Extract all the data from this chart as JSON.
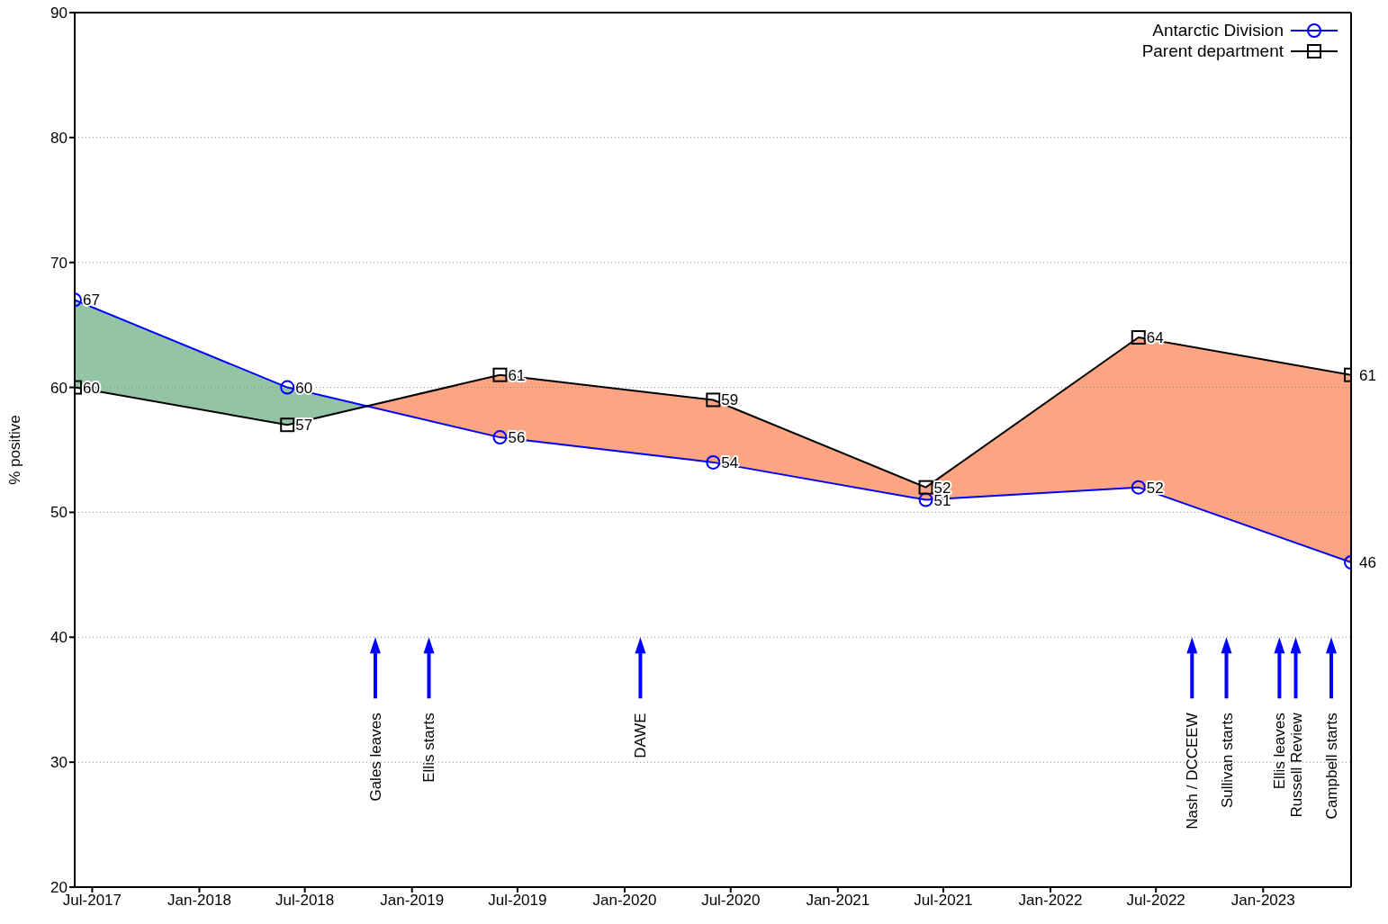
{
  "chart_data": {
    "type": "line",
    "ylabel": "% positive",
    "x": [
      "2017-06-01",
      "2018-06-01",
      "2019-06-01",
      "2020-06-01",
      "2021-06-01",
      "2022-06-01",
      "2023-06-01"
    ],
    "series": [
      {
        "name": "Antarctic Division",
        "color": "#0000ff",
        "marker": "circle",
        "values": [
          67,
          60,
          56,
          54,
          51,
          52,
          46
        ]
      },
      {
        "name": "Parent department",
        "color": "#000000",
        "marker": "square",
        "values": [
          60,
          57,
          61,
          59,
          52,
          64,
          61
        ]
      }
    ],
    "xlim": [
      "2017-06-01",
      "2023-06-01"
    ],
    "xticks": [
      {
        "value": "2017-07-01",
        "label": "Jul-2017"
      },
      {
        "value": "2018-01-01",
        "label": "Jan-2018"
      },
      {
        "value": "2018-07-01",
        "label": "Jul-2018"
      },
      {
        "value": "2019-01-01",
        "label": "Jan-2019"
      },
      {
        "value": "2019-07-01",
        "label": "Jul-2019"
      },
      {
        "value": "2020-01-01",
        "label": "Jan-2020"
      },
      {
        "value": "2020-07-01",
        "label": "Jul-2020"
      },
      {
        "value": "2021-01-01",
        "label": "Jan-2021"
      },
      {
        "value": "2021-07-01",
        "label": "Jul-2021"
      },
      {
        "value": "2022-01-01",
        "label": "Jan-2022"
      },
      {
        "value": "2022-07-01",
        "label": "Jul-2022"
      },
      {
        "value": "2023-01-01",
        "label": "Jan-2023"
      }
    ],
    "ylim": [
      20,
      90
    ],
    "yticks": [
      20,
      30,
      40,
      50,
      60,
      70,
      80,
      90
    ],
    "grid": "y",
    "legend": "top right",
    "data_labels": true,
    "line_style": "solid",
    "ref_lines": [
      {
        "axis": "x",
        "value": "2018-10-30",
        "label": "Gales leaves",
        "color": "#0000ff"
      },
      {
        "axis": "x",
        "value": "2019-01-30",
        "label": "Ellis starts",
        "color": "#0000ff"
      },
      {
        "axis": "x",
        "value": "2020-01-28",
        "label": "DAWE",
        "color": "#0000ff"
      },
      {
        "axis": "x",
        "value": "2022-09-01",
        "label": "Nash / DCCEEW",
        "color": "#0000ff"
      },
      {
        "axis": "x",
        "value": "2022-10-30",
        "label": "Sullivan starts",
        "color": "#0000ff"
      },
      {
        "axis": "x",
        "value": "2023-01-29",
        "label": "Ellis leaves",
        "color": "#0000ff"
      },
      {
        "axis": "x",
        "value": "2023-02-26",
        "label": "Russell Review",
        "color": "#0000ff"
      },
      {
        "axis": "x",
        "value": "2023-04-28",
        "label": "Campbell starts",
        "color": "#0000ff"
      }
    ]
  }
}
